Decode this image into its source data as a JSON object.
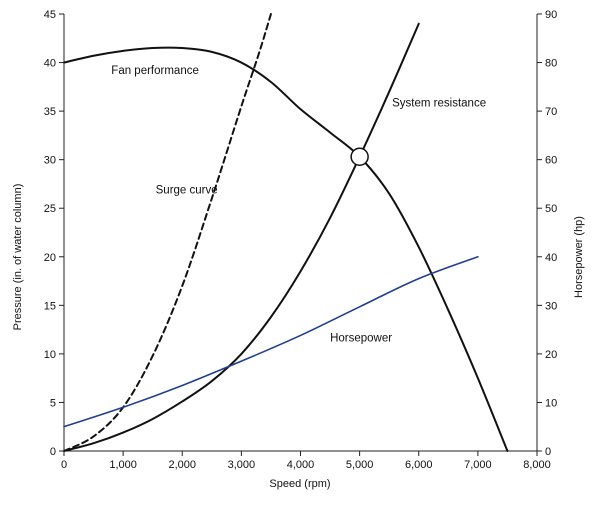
{
  "chart_data": {
    "type": "line",
    "xlabel": "Speed (rpm)",
    "ylabel_left": "Pressure (in. of water column)",
    "ylabel_right": "Horsepower (hp)",
    "xlim": [
      0,
      8000
    ],
    "ylim_left": [
      0,
      45
    ],
    "ylim_right": [
      0,
      90
    ],
    "x_ticks": [
      "0",
      "1,000",
      "2,000",
      "3,000",
      "4,000",
      "5,000",
      "6,000",
      "7,000",
      "8,000"
    ],
    "y_left_ticks": [
      "0",
      "5",
      "10",
      "15",
      "20",
      "25",
      "30",
      "35",
      "40",
      "45"
    ],
    "y_right_ticks": [
      "0",
      "10",
      "20",
      "30",
      "40",
      "50",
      "60",
      "70",
      "80",
      "90"
    ],
    "grid": false,
    "series": [
      {
        "name": "Fan performance",
        "axis": "left",
        "color": "#111111",
        "style": "solid",
        "x": [
          0,
          500,
          1000,
          1500,
          2000,
          2500,
          3000,
          3500,
          4000,
          4500,
          5000,
          5500,
          6000,
          6500,
          7000,
          7500
        ],
        "y": [
          40.0,
          40.7,
          41.2,
          41.5,
          41.5,
          41.1,
          40.0,
          38.0,
          35.2,
          32.8,
          30.3,
          26.5,
          21.0,
          14.5,
          7.5,
          0.0
        ]
      },
      {
        "name": "System resistance",
        "axis": "left",
        "color": "#111111",
        "style": "solid",
        "x": [
          0,
          500,
          1000,
          1500,
          2000,
          2500,
          3000,
          3500,
          4000,
          4500,
          5000,
          5500,
          6000
        ],
        "y": [
          0.0,
          0.8,
          1.9,
          3.3,
          5.1,
          7.2,
          10.0,
          13.8,
          18.5,
          24.0,
          30.3,
          37.0,
          44.0
        ]
      },
      {
        "name": "Surge curve",
        "axis": "left",
        "color": "#111111",
        "style": "dashed",
        "x": [
          0,
          500,
          1000,
          1500,
          2000,
          2500,
          3000,
          3300,
          3500
        ],
        "y": [
          0.0,
          1.5,
          4.5,
          9.8,
          17.0,
          26.0,
          35.5,
          41.0,
          45.0
        ]
      },
      {
        "name": "Horsepower",
        "axis": "right",
        "color": "#1f3f8f",
        "style": "solid",
        "x": [
          0,
          1000,
          2000,
          3000,
          4000,
          5000,
          6000,
          7000
        ],
        "y": [
          5.0,
          9.0,
          13.5,
          18.5,
          23.8,
          29.7,
          35.5,
          40.0
        ]
      }
    ],
    "annotations": [
      {
        "text": "Fan performance",
        "x": 800,
        "y": 38.8
      },
      {
        "text": "Surge curve",
        "x": 1550,
        "y": 26.5
      },
      {
        "text": "System resistance",
        "x": 5550,
        "y": 35.5
      },
      {
        "text": "Horsepower",
        "x": 4500,
        "y": 11.3
      }
    ],
    "markers": [
      {
        "name": "operating-point",
        "x": 5000,
        "y": 30.3
      }
    ]
  }
}
